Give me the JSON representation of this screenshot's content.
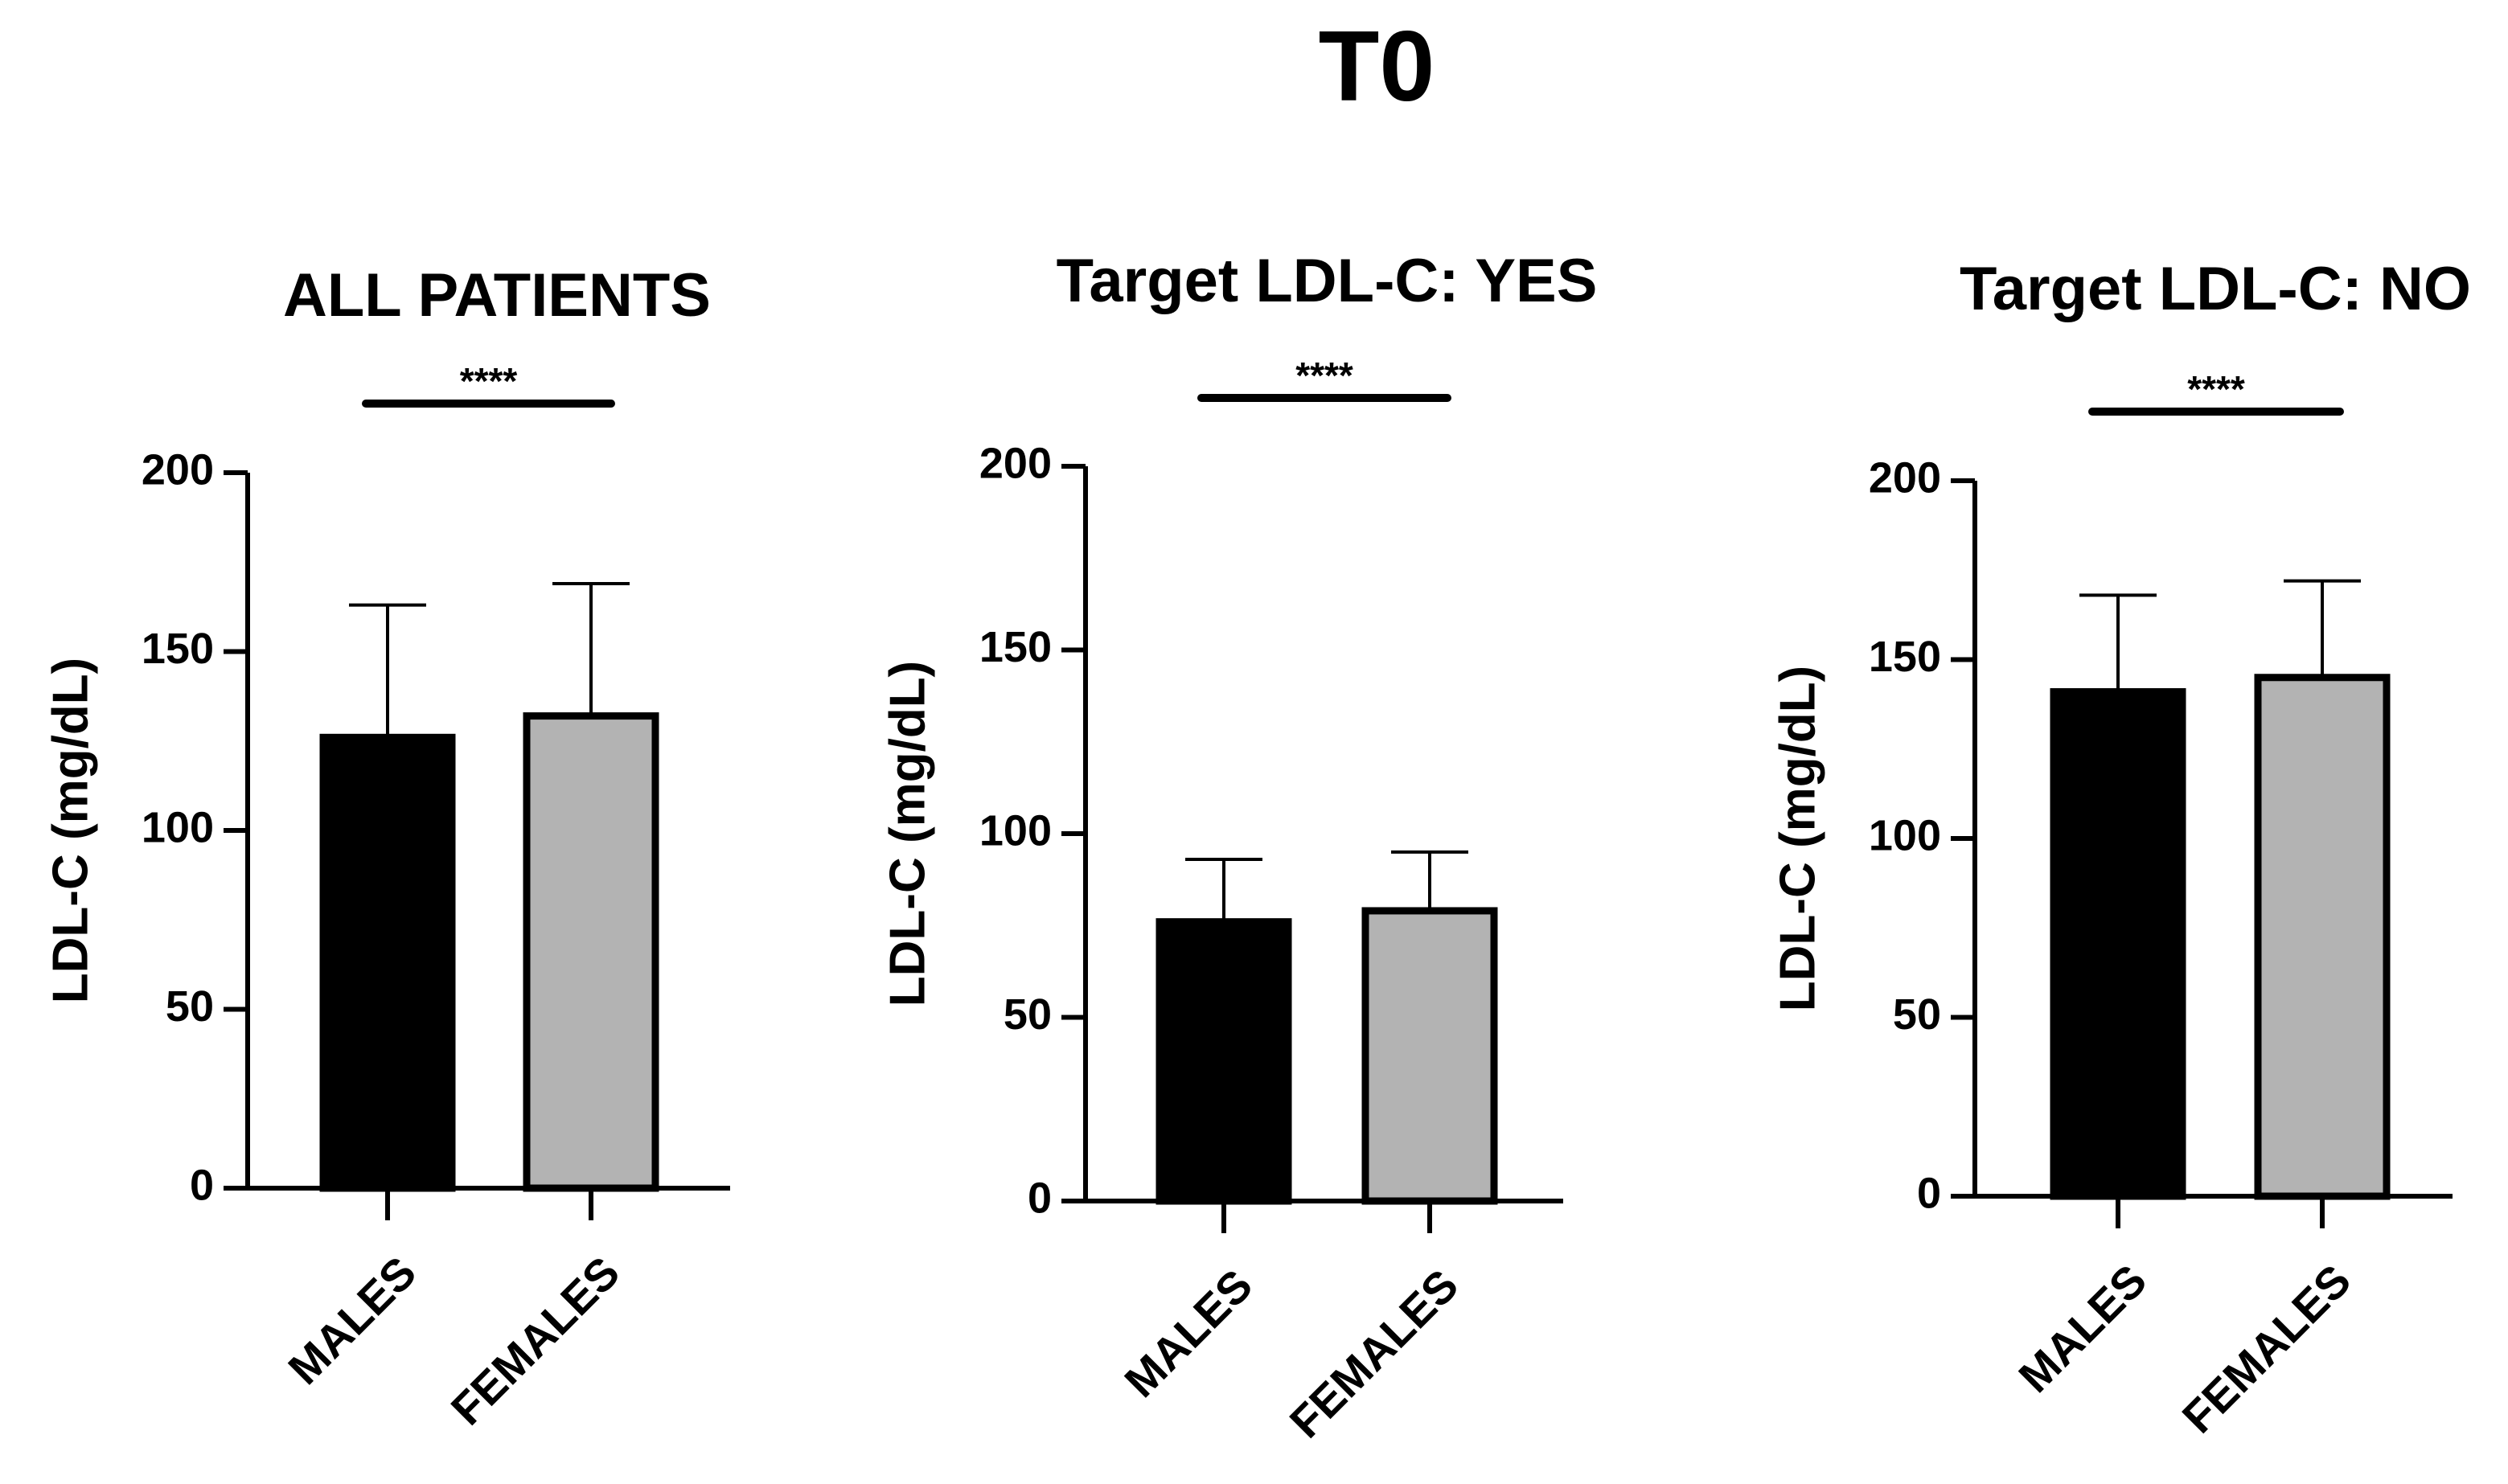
{
  "figure_title": "T0",
  "chart_data": [
    {
      "type": "bar",
      "title": "ALL PATIENTS",
      "xlabel": "",
      "ylabel": "LDL-C (mg/dL)",
      "ylim": [
        0,
        200
      ],
      "yticks": [
        0,
        50,
        100,
        150,
        200
      ],
      "categories": [
        "MALES",
        "FEMALES"
      ],
      "values": [
        126,
        132
      ],
      "error_upper": [
        163,
        169
      ],
      "colors": [
        "#000000",
        "#b3b3b3"
      ],
      "significance": "****"
    },
    {
      "type": "bar",
      "title": "Target LDL-C: YES",
      "xlabel": "",
      "ylabel": "LDL-C (mg/dL)",
      "ylim": [
        0,
        200
      ],
      "yticks": [
        0,
        50,
        100,
        150,
        200
      ],
      "categories": [
        "MALES",
        "FEMALES"
      ],
      "values": [
        76,
        79
      ],
      "error_upper": [
        93,
        95
      ],
      "colors": [
        "#000000",
        "#b3b3b3"
      ],
      "significance": "****"
    },
    {
      "type": "bar",
      "title": "Target LDL-C: NO",
      "xlabel": "",
      "ylabel": "LDL-C (mg/dL)",
      "ylim": [
        0,
        200
      ],
      "yticks": [
        0,
        50,
        100,
        150,
        200
      ],
      "categories": [
        "MALES",
        "FEMALES"
      ],
      "values": [
        141,
        145
      ],
      "error_upper": [
        168,
        172
      ],
      "colors": [
        "#000000",
        "#b3b3b3"
      ],
      "significance": "****"
    }
  ]
}
